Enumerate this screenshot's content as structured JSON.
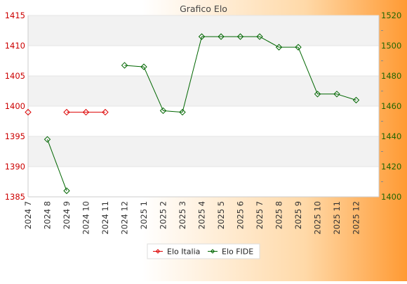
{
  "chart_data": {
    "type": "line",
    "title": "Grafico Elo",
    "categories": [
      "2024 7",
      "2024 8",
      "2024 9",
      "2024 10",
      "2024 11",
      "2024 12",
      "2025 1",
      "2025 2",
      "2025 3",
      "2025 4",
      "2025 5",
      "2025 6",
      "2025 7",
      "2025 8",
      "2025 9",
      "2025 10",
      "2025 11",
      "2025 12"
    ],
    "left_axis": {
      "ylim": [
        1385,
        1415
      ],
      "ticks": [
        1385,
        1390,
        1395,
        1400,
        1405,
        1410,
        1415
      ],
      "color": "#cc0000"
    },
    "right_axis": {
      "ylim": [
        1400,
        1520
      ],
      "ticks": [
        1400,
        1420,
        1440,
        1460,
        1480,
        1500,
        1520
      ],
      "color": "#226600"
    },
    "grid": true,
    "legend": "bottom-center",
    "series": [
      {
        "name": "Elo Italia",
        "axis": "left",
        "color": "#dd0000",
        "values": [
          1399,
          null,
          1399,
          1399,
          1399,
          null,
          null,
          null,
          null,
          null,
          null,
          null,
          null,
          null,
          null,
          null,
          null,
          null
        ]
      },
      {
        "name": "Elo FIDE",
        "axis": "right",
        "color": "#006600",
        "values": [
          null,
          1438,
          1404,
          null,
          null,
          1487,
          1486,
          1457,
          1456,
          1506,
          1506,
          1506,
          1506,
          1499,
          1499,
          1468,
          1468,
          1464
        ]
      }
    ]
  }
}
